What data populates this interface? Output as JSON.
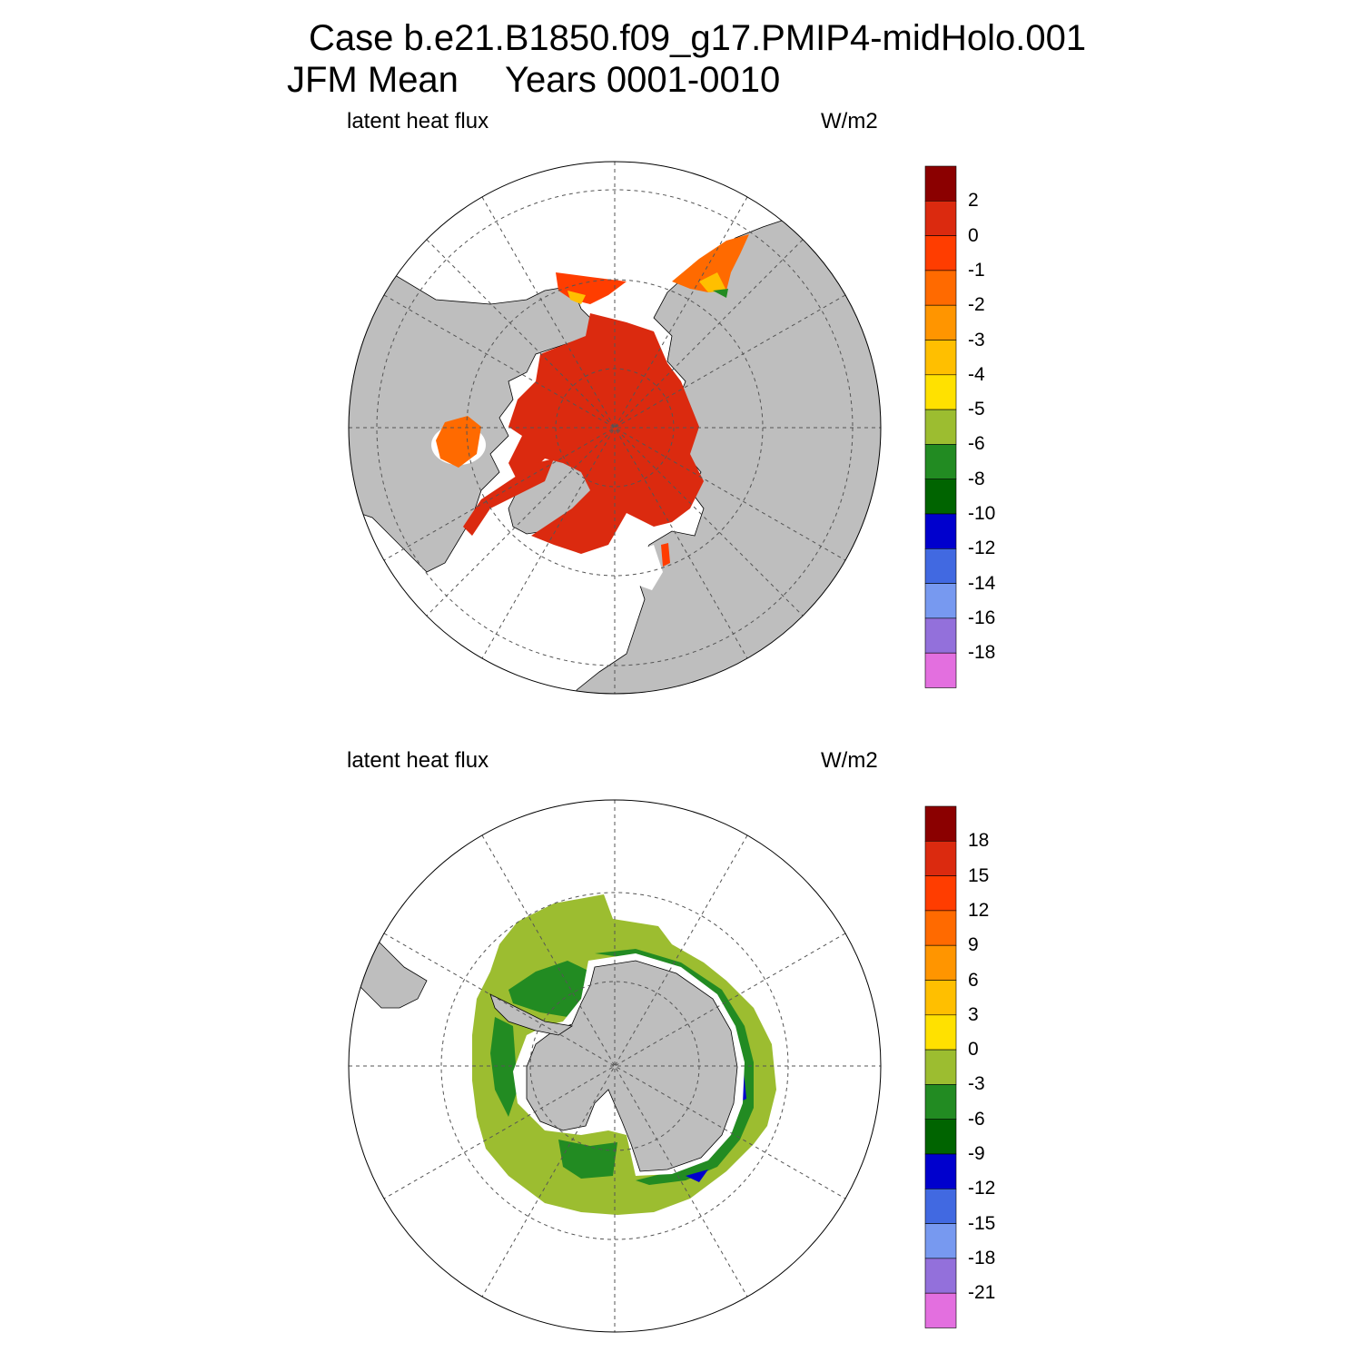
{
  "title": {
    "line1": "Case b.e21.B1850.f09_g17.PMIP4-midHolo.001",
    "line2_season": "JFM Mean",
    "line2_years": "Years 0001-0010"
  },
  "colors": {
    "land": "#bebebe",
    "ocean_empty": "#ffffff",
    "palette": [
      "#8b0000",
      "#db2a0f",
      "#ff3d00",
      "#ff6a00",
      "#ff9500",
      "#ffbf00",
      "#ffe100",
      "#9cbd30",
      "#228b22",
      "#006400",
      "#0000cd",
      "#4169e1",
      "#7799f0",
      "#9370db",
      "#e36fdf"
    ]
  },
  "panels": [
    {
      "id": "north",
      "hemisphere": "north",
      "variable": "latent heat flux",
      "units": "W/m2",
      "colorbar_labels": [
        "2",
        "0",
        "-1",
        "-2",
        "-3",
        "-4",
        "-5",
        "-6",
        "-8",
        "-10",
        "-12",
        "-14",
        "-16",
        "-18"
      ]
    },
    {
      "id": "south",
      "hemisphere": "south",
      "variable": "latent heat flux",
      "units": "W/m2",
      "colorbar_labels": [
        "18",
        "15",
        "12",
        "9",
        "6",
        "3",
        "0",
        "-3",
        "-6",
        "-9",
        "-12",
        "-15",
        "-18",
        "-21"
      ]
    }
  ]
}
